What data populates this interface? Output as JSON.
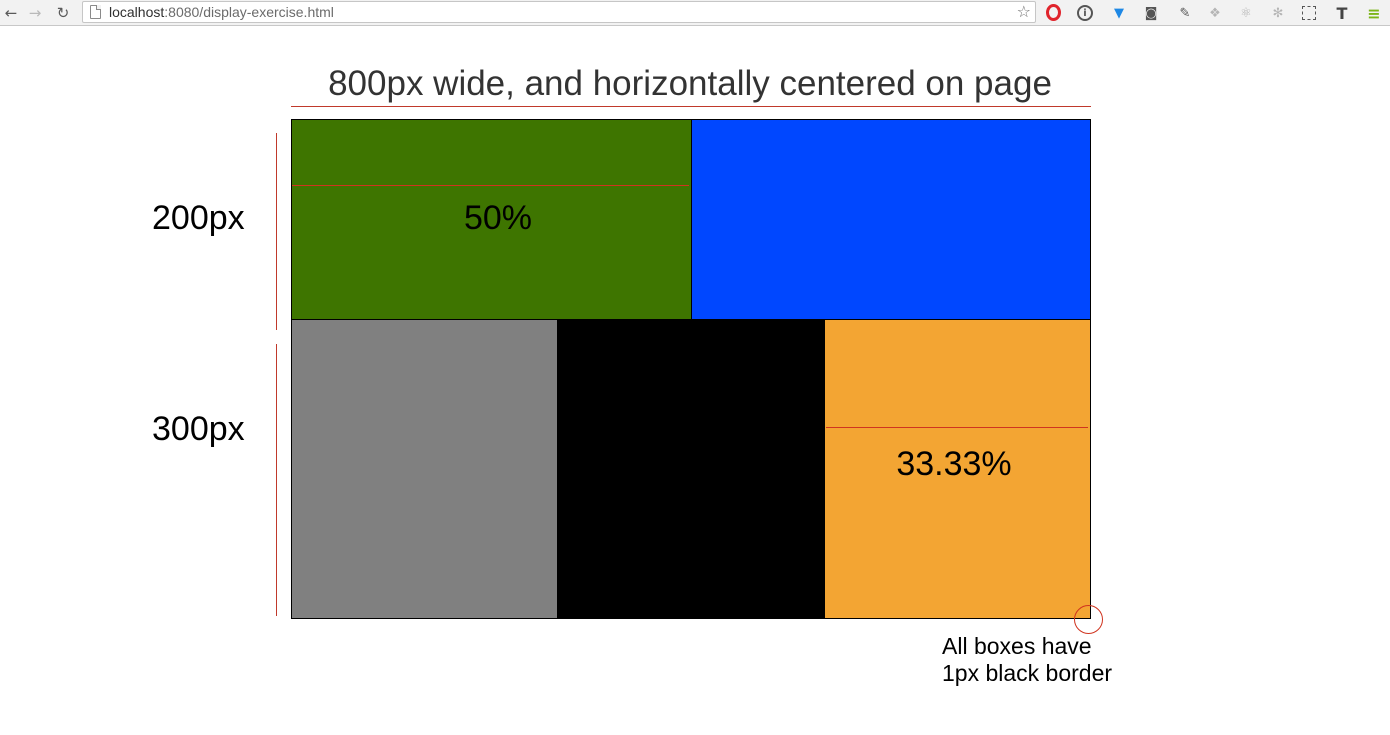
{
  "browser": {
    "url_host": "localhost",
    "url_path": ":8080/display-exercise.html",
    "icons": [
      "back-arrow-icon",
      "forward-arrow-icon",
      "reload-icon",
      "page-icon",
      "star-icon"
    ]
  },
  "page": {
    "title": "800px wide, and horizontally centered on page",
    "row_labels": [
      "200px",
      "300px"
    ],
    "box_labels": [
      "50%",
      "33.33%"
    ],
    "note_lines": [
      "All boxes have",
      "1px black border"
    ],
    "colors": {
      "green": "#3e7500",
      "blue": "#0047ff",
      "gray": "#808080",
      "black": "#000000",
      "orange": "#f3a533",
      "annotation_red": "#d0341f"
    }
  }
}
